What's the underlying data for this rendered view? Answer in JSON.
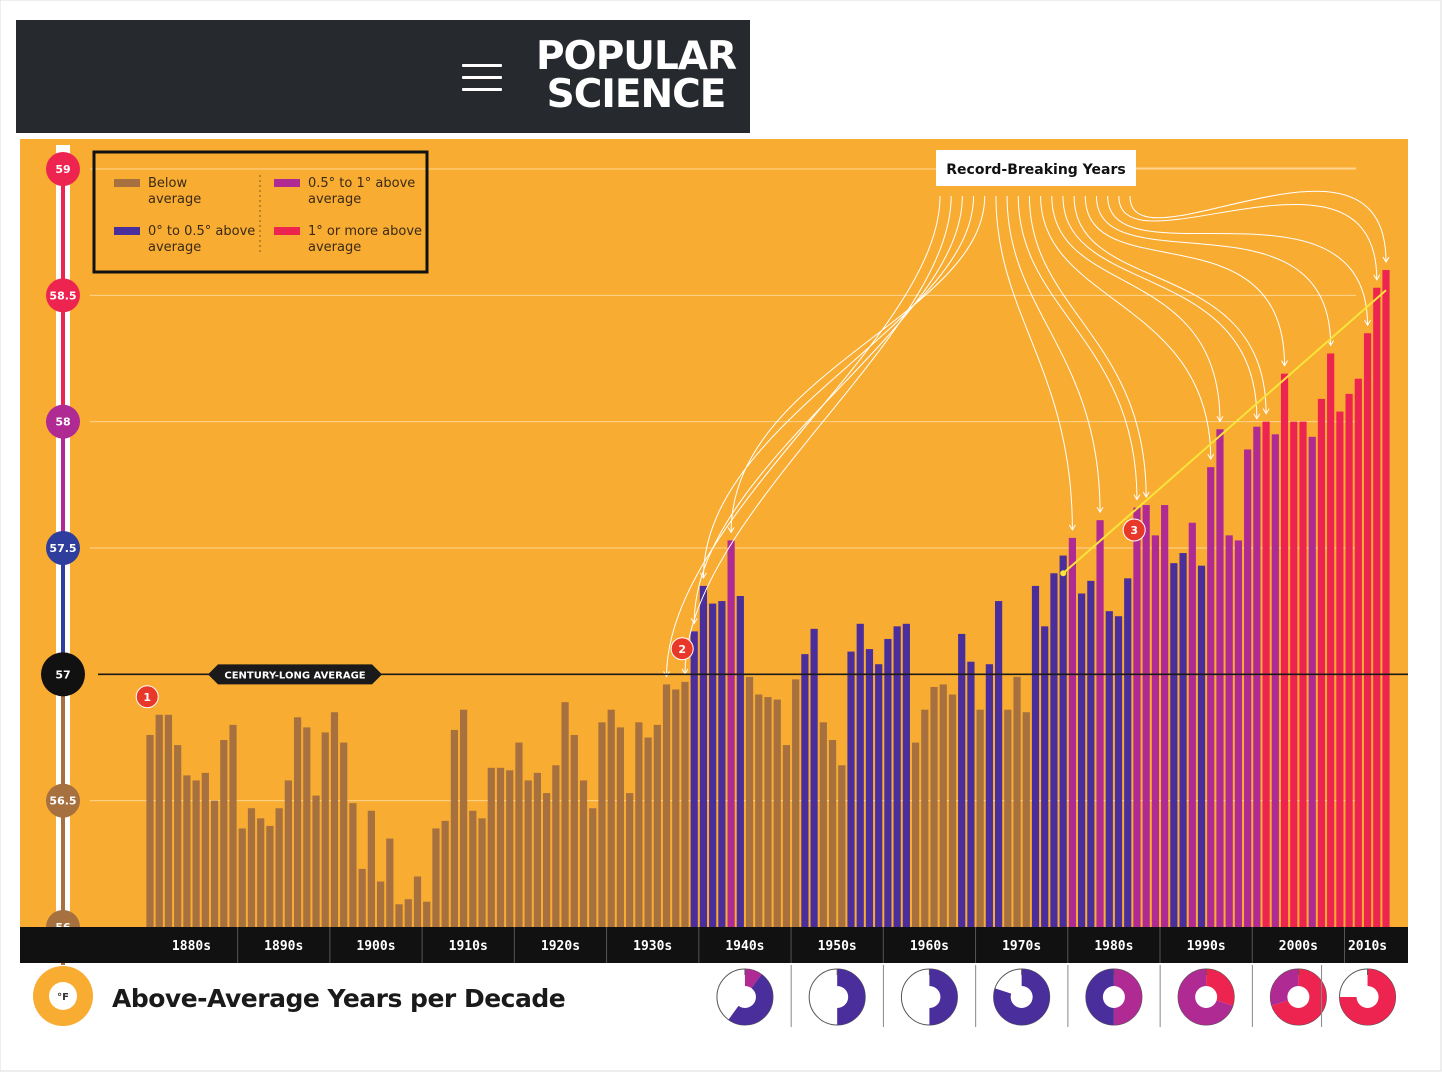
{
  "header": {
    "brand_line1": "POPULAR",
    "brand_line2": "SCIENCE",
    "menu_icon": "hamburger-icon"
  },
  "colors": {
    "background": "#f9ac32",
    "below": "#a6703f",
    "zero_to_half": "#4a2e9c",
    "half_to_one": "#b02a93",
    "one_plus": "#ee2450",
    "axis_band": "#111111",
    "record_arrows": "#ffffff",
    "trend_line": "#f7e53a"
  },
  "chart_data": {
    "type": "bar",
    "unit_symbol": "°F",
    "y_ticks": [
      "59",
      "58.5",
      "58",
      "57.5",
      "57",
      "56.5",
      "56"
    ],
    "ylim": [
      56,
      59
    ],
    "average": 57,
    "average_label": "CENTURY-LONG AVERAGE",
    "x_start_year": 1880,
    "x_end_year": 2017,
    "decades": [
      "1880s",
      "1890s",
      "1900s",
      "1910s",
      "1920s",
      "1930s",
      "1940s",
      "1950s",
      "1960s",
      "1970s",
      "1980s",
      "1990s",
      "2000s",
      "2010s"
    ],
    "legend": {
      "below": "Below average",
      "zero_half": "0° to 0.5° above average",
      "half_one": "0.5° to 1° above average",
      "one_plus": "1° or more above average"
    },
    "annotations": {
      "record_label": "Record-Breaking Years",
      "markers": [
        "1",
        "2",
        "3"
      ]
    },
    "values": [
      56.76,
      56.84,
      56.84,
      56.72,
      56.6,
      56.58,
      56.61,
      56.5,
      56.74,
      56.8,
      56.39,
      56.47,
      56.43,
      56.4,
      56.47,
      56.58,
      56.83,
      56.79,
      56.52,
      56.77,
      56.85,
      56.73,
      56.49,
      56.23,
      56.46,
      56.18,
      56.35,
      56.09,
      56.11,
      56.2,
      56.1,
      56.39,
      56.42,
      56.78,
      56.86,
      56.46,
      56.43,
      56.63,
      56.63,
      56.62,
      56.73,
      56.58,
      56.61,
      56.53,
      56.64,
      56.89,
      56.76,
      56.58,
      56.47,
      56.81,
      56.86,
      56.79,
      56.53,
      56.81,
      56.75,
      56.8,
      56.96,
      56.94,
      56.97,
      57.17,
      57.35,
      57.28,
      57.29,
      57.53,
      57.31,
      56.99,
      56.92,
      56.91,
      56.9,
      56.72,
      56.98,
      57.08,
      57.18,
      56.81,
      56.74,
      56.64,
      57.09,
      57.2,
      57.1,
      57.04,
      57.14,
      57.19,
      57.2,
      56.73,
      56.86,
      56.95,
      56.96,
      56.92,
      57.16,
      57.05,
      56.86,
      57.04,
      57.29,
      56.86,
      56.99,
      56.85,
      57.35,
      57.19,
      57.4,
      57.47,
      57.54,
      57.32,
      57.37,
      57.61,
      57.25,
      57.23,
      57.38,
      57.66,
      57.67,
      57.55,
      57.67,
      57.44,
      57.48,
      57.6,
      57.43,
      57.82,
      57.97,
      57.55,
      57.53,
      57.89,
      57.98,
      58.0,
      57.95,
      58.19,
      58.0,
      58.0,
      57.94,
      58.09,
      58.27,
      58.04,
      58.11,
      58.17,
      58.35,
      58.53,
      58.6
    ],
    "category_thresholds": [
      57.0,
      57.5,
      58.0
    ]
  },
  "footer": {
    "title": "Above-Average Years per Decade",
    "unit_badge": "°F",
    "pies": [
      {
        "decade": "1940s",
        "red": 0.0,
        "magenta": 0.1,
        "blue": 0.5
      },
      {
        "decade": "1950s",
        "red": 0.0,
        "magenta": 0.0,
        "blue": 0.5
      },
      {
        "decade": "1960s",
        "red": 0.0,
        "magenta": 0.0,
        "blue": 0.5
      },
      {
        "decade": "1970s",
        "red": 0.0,
        "magenta": 0.0,
        "blue": 0.8
      },
      {
        "decade": "1980s",
        "red": 0.0,
        "magenta": 0.5,
        "blue": 0.5
      },
      {
        "decade": "1990s",
        "red": 0.3,
        "magenta": 0.7,
        "blue": 0.0
      },
      {
        "decade": "2000s",
        "red": 0.7,
        "magenta": 0.3,
        "blue": 0.0
      },
      {
        "decade": "2010s",
        "red": 0.75,
        "magenta": 0.0,
        "blue": 0.0
      }
    ]
  }
}
